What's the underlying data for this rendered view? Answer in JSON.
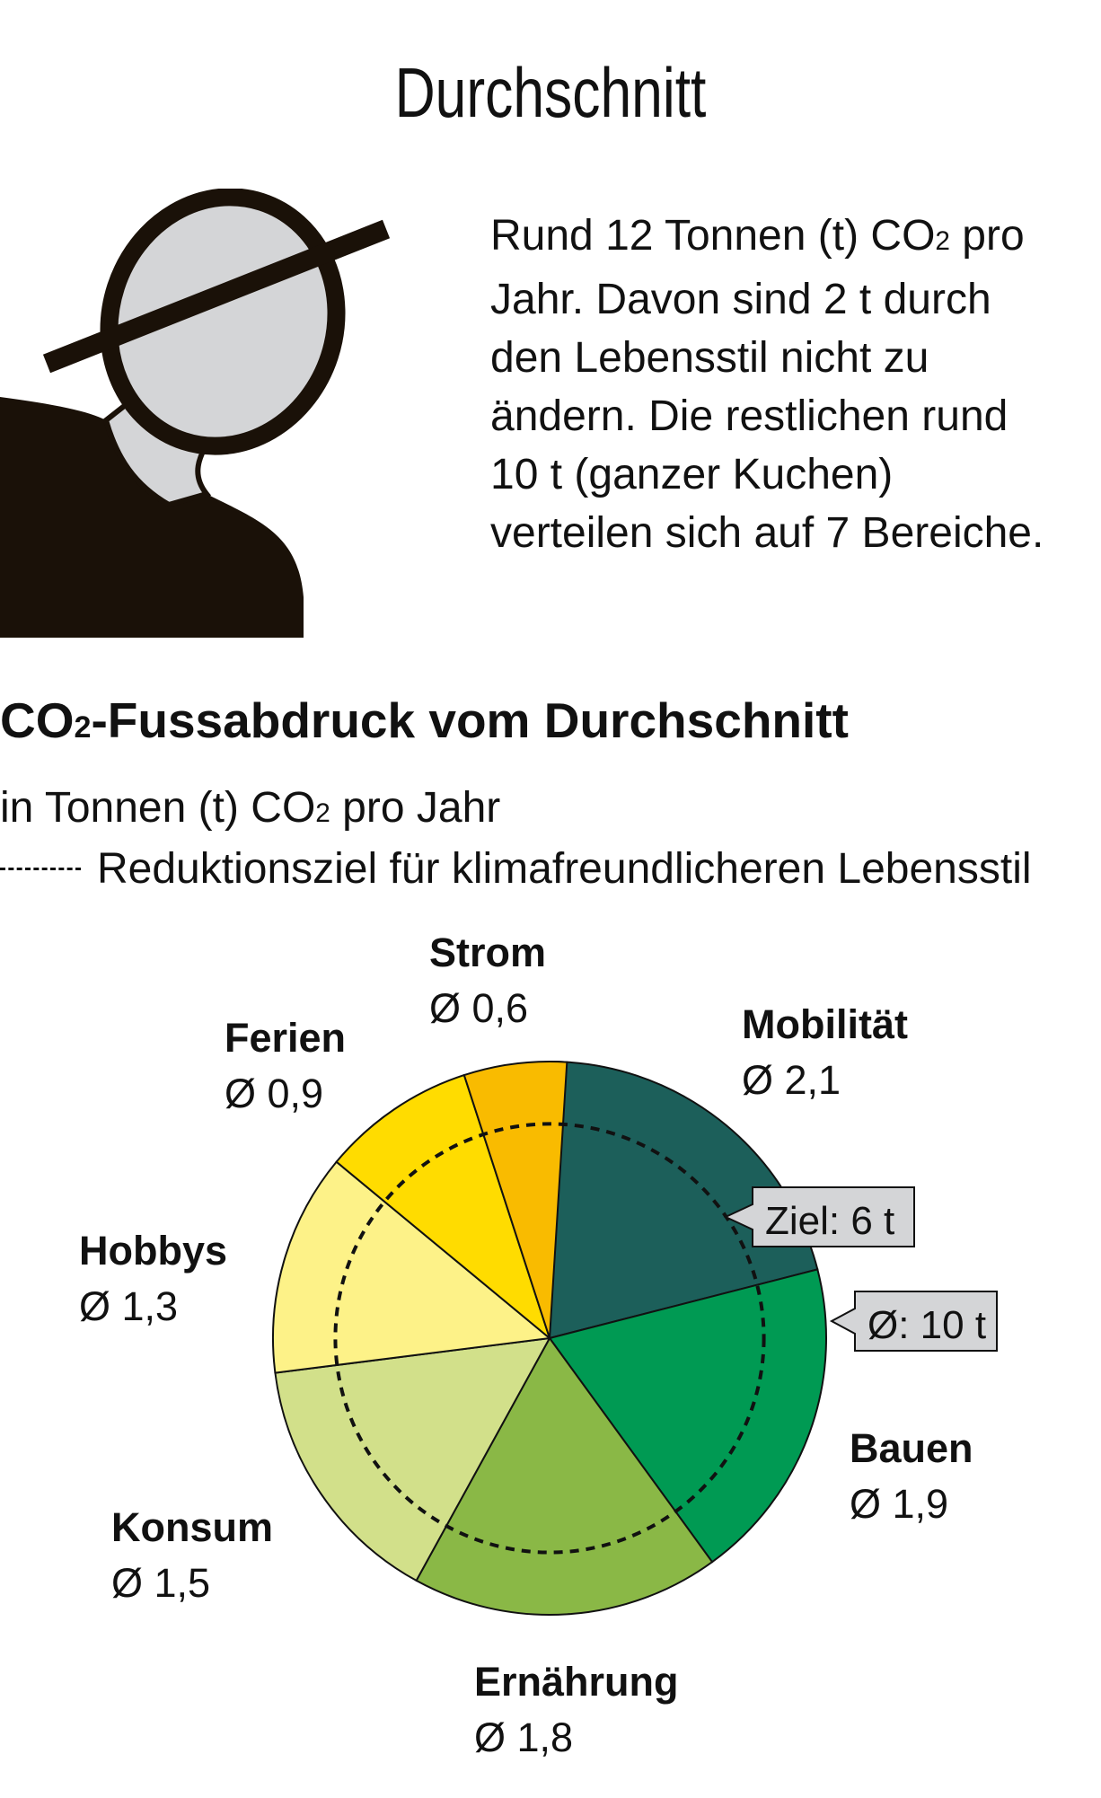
{
  "header": {
    "title": "Durchschnitt"
  },
  "intro": {
    "line1_a": "Rund 12 Tonnen (t) CO",
    "line1_sub": "2",
    "line1_b": " pro",
    "line2": "Jahr. Davon sind 2 t durch",
    "line3": "den Lebensstil nicht zu",
    "line4": "ändern. Die restlichen rund",
    "line5": "10 t (ganzer Kuchen)",
    "line6": "verteilen sich auf 7 Bereiche."
  },
  "illustration": {
    "icon": "person-head-icon"
  },
  "chart_data": {
    "type": "pie",
    "title_a": "CO",
    "title_sub": "2",
    "title_b": "-Fussabdruck vom Durchschnitt",
    "unit_a": "in Tonnen (t) CO",
    "unit_sub": "2",
    "unit_b": " pro Jahr",
    "legend": "Reduktionsziel für klimafreundlicheren Lebensstil",
    "total": 10,
    "total_label": "Ø: 10 t",
    "target": 6,
    "target_label": "Ziel: 6 t",
    "slices": [
      {
        "name": "Mobilität",
        "value": 2.1,
        "value_label": "Ø 2,1",
        "color": "#1c5f5a"
      },
      {
        "name": "Bauen",
        "value": 1.9,
        "value_label": "Ø 1,9",
        "color": "#009a53"
      },
      {
        "name": "Ernährung",
        "value": 1.8,
        "value_label": "Ø 1,8",
        "color": "#8ab846"
      },
      {
        "name": "Konsum",
        "value": 1.5,
        "value_label": "Ø 1,5",
        "color": "#d2e08a"
      },
      {
        "name": "Hobbys",
        "value": 1.3,
        "value_label": "Ø 1,3",
        "color": "#fdf288"
      },
      {
        "name": "Ferien",
        "value": 0.9,
        "value_label": "Ø 0,9",
        "color": "#ffdc00"
      },
      {
        "name": "Strom",
        "value": 0.6,
        "value_label": "Ø 0,6",
        "color": "#f9bb00"
      }
    ]
  }
}
